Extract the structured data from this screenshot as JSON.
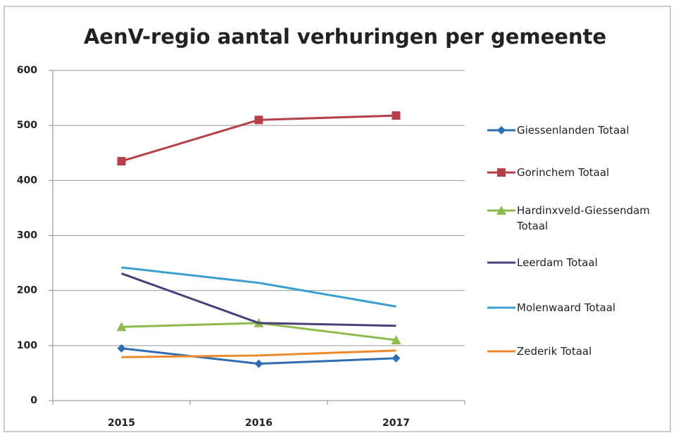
{
  "chart_data": {
    "type": "line",
    "title": "AenV-regio aantal verhuringen per gemeente",
    "categories": [
      "2015",
      "2016",
      "2017"
    ],
    "series": [
      {
        "name": "Giessenlanden Totaal",
        "color": "#2e6db4",
        "marker": "diamond",
        "values": [
          95,
          67,
          77
        ]
      },
      {
        "name": "Gorinchem Totaal",
        "color": "#b5404a",
        "marker": "square",
        "values": [
          435,
          510,
          518
        ]
      },
      {
        "name": "Hardinxveld-Giessendam Totaal",
        "color": "#8dbb4c",
        "marker": "triangle",
        "values": [
          134,
          141,
          110
        ]
      },
      {
        "name": "Leerdam Totaal",
        "color": "#4a3f78",
        "marker": "none",
        "values": [
          231,
          141,
          136
        ]
      },
      {
        "name": "Molenwaard Totaal",
        "color": "#3aa0cf",
        "marker": "none",
        "values": [
          242,
          214,
          171
        ]
      },
      {
        "name": "Zederik Totaal",
        "color": "#ee8a2e",
        "marker": "none",
        "values": [
          79,
          82,
          91
        ]
      }
    ],
    "ylim": [
      0,
      600
    ],
    "yticks": [
      0,
      100,
      200,
      300,
      400,
      500,
      600
    ],
    "grid": true,
    "legend": "right"
  }
}
